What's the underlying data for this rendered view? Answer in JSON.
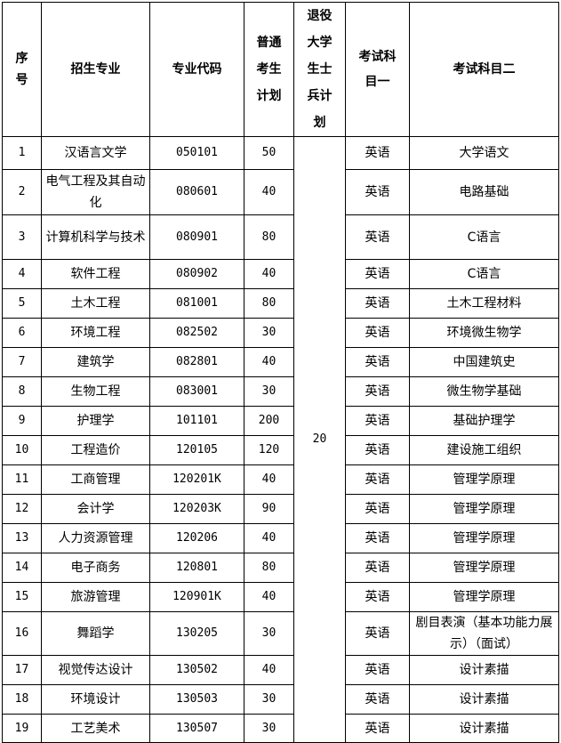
{
  "headers": {
    "seq": "序号",
    "major": "招生专业",
    "code": "专业代码",
    "general_plan": "普通考生计划",
    "veteran_plan": "退役大学生士兵计划",
    "subject1": "考试科目一",
    "subject2": "考试科目二"
  },
  "veteran_plan_total": "20",
  "rows": [
    {
      "seq": "1",
      "major": "汉语言文学",
      "code": "050101",
      "plan": "50",
      "s1": "英语",
      "s2": "大学语文"
    },
    {
      "seq": "2",
      "major": "电气工程及其自动化",
      "code": "080601",
      "plan": "40",
      "s1": "英语",
      "s2": "电路基础"
    },
    {
      "seq": "3",
      "major": "计算机科学与技术",
      "code": "080901",
      "plan": "80",
      "s1": "英语",
      "s2": "C语言"
    },
    {
      "seq": "4",
      "major": "软件工程",
      "code": "080902",
      "plan": "40",
      "s1": "英语",
      "s2": "C语言"
    },
    {
      "seq": "5",
      "major": "土木工程",
      "code": "081001",
      "plan": "80",
      "s1": "英语",
      "s2": "土木工程材料"
    },
    {
      "seq": "6",
      "major": "环境工程",
      "code": "082502",
      "plan": "30",
      "s1": "英语",
      "s2": "环境微生物学"
    },
    {
      "seq": "7",
      "major": "建筑学",
      "code": "082801",
      "plan": "40",
      "s1": "英语",
      "s2": "中国建筑史"
    },
    {
      "seq": "8",
      "major": "生物工程",
      "code": "083001",
      "plan": "30",
      "s1": "英语",
      "s2": "微生物学基础"
    },
    {
      "seq": "9",
      "major": "护理学",
      "code": "101101",
      "plan": "200",
      "s1": "英语",
      "s2": "基础护理学"
    },
    {
      "seq": "10",
      "major": "工程造价",
      "code": "120105",
      "plan": "120",
      "s1": "英语",
      "s2": "建设施工组织"
    },
    {
      "seq": "11",
      "major": "工商管理",
      "code": "120201K",
      "plan": "40",
      "s1": "英语",
      "s2": "管理学原理"
    },
    {
      "seq": "12",
      "major": "会计学",
      "code": "120203K",
      "plan": "90",
      "s1": "英语",
      "s2": "管理学原理"
    },
    {
      "seq": "13",
      "major": "人力资源管理",
      "code": "120206",
      "plan": "40",
      "s1": "英语",
      "s2": "管理学原理"
    },
    {
      "seq": "14",
      "major": "电子商务",
      "code": "120801",
      "plan": "80",
      "s1": "英语",
      "s2": "管理学原理"
    },
    {
      "seq": "15",
      "major": "旅游管理",
      "code": "120901K",
      "plan": "40",
      "s1": "英语",
      "s2": "管理学原理"
    },
    {
      "seq": "16",
      "major": "舞蹈学",
      "code": "130205",
      "plan": "30",
      "s1": "英语",
      "s2": "剧目表演（基本功能力展示）（面试）"
    },
    {
      "seq": "17",
      "major": "视觉传达设计",
      "code": "130502",
      "plan": "40",
      "s1": "英语",
      "s2": "设计素描"
    },
    {
      "seq": "18",
      "major": "环境设计",
      "code": "130503",
      "plan": "30",
      "s1": "英语",
      "s2": "设计素描"
    },
    {
      "seq": "19",
      "major": "工艺美术",
      "code": "130507",
      "plan": "30",
      "s1": "英语",
      "s2": "设计素描"
    }
  ]
}
